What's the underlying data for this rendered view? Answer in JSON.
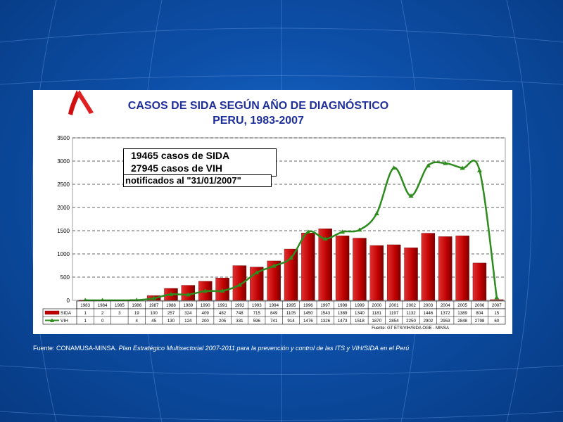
{
  "chart_data": {
    "type": "bar",
    "title_line1": "CASOS DE SIDA SEGÚN AÑO DE DIAGNÓSTICO",
    "title_line2": "PERU, 1983-2007",
    "categories": [
      "1983",
      "1984",
      "1985",
      "1986",
      "1987",
      "1988",
      "1989",
      "1990",
      "1991",
      "1992",
      "1993",
      "1994",
      "1995",
      "1996",
      "1997",
      "1998",
      "1999",
      "2000",
      "2001",
      "2002",
      "2003",
      "2004",
      "2005",
      "2006",
      "2007"
    ],
    "series": [
      {
        "name": "SIDA",
        "kind": "bar",
        "color": "#c00000",
        "values": [
          1,
          2,
          3,
          19,
          100,
          257,
          324,
          409,
          482,
          748,
          715,
          849,
          1105,
          1450,
          1543,
          1389,
          1340,
          1181,
          1197,
          1132,
          1446,
          1372,
          1389,
          804,
          15
        ]
      },
      {
        "name": "VIH",
        "kind": "line",
        "color": "#2e8b1e",
        "values": [
          1,
          0,
          null,
          4,
          45,
          130,
          124,
          200,
          205,
          331,
          596,
          741,
          914,
          1476,
          1326,
          1473,
          1518,
          1870,
          2854,
          2250,
          2902,
          2953,
          2848,
          2798,
          60
        ]
      }
    ],
    "ylim": [
      0,
      3500
    ],
    "yticks": [
      0,
      500,
      1000,
      1500,
      2000,
      2500,
      3000,
      3500
    ],
    "table_values": {
      "SIDA": [
        "1",
        "2",
        "3",
        "19",
        "100",
        "257",
        "324",
        "409",
        "482",
        "748",
        "715",
        "849",
        "1105",
        "1450",
        "1543",
        "1389",
        "1340",
        "1181",
        "1197",
        "1132",
        "1446",
        "1372",
        "1389",
        "804",
        "15"
      ],
      "VIH": [
        "1",
        "0",
        "",
        "4",
        "45",
        "130",
        "124",
        "200",
        "205",
        "331",
        "596",
        "741",
        "914",
        "1476",
        "1326",
        "1473",
        "1518",
        "1870",
        "2854",
        "2250",
        "2902",
        "2953",
        "2848",
        "2798",
        "60"
      ]
    },
    "annotation_lines": [
      "19465 casos de SIDA",
      "27945 casos de VIH",
      "notificados al \"31/01/2007\""
    ],
    "source_inner": "Fuente: GT ETS/VIH/SIDA OGE - MINSA",
    "grid": "dashed horizontal"
  },
  "footer": {
    "prefix": "Fuente: CONAMUSA-MINSA. ",
    "italic": "Plan Estratégico Multisectorial 2007-2011 para la prevención y control de las ITS y VIH/SIDA en el Perú"
  },
  "colors": {
    "background": "#0d4fa8",
    "title": "#1f2f9a",
    "ribbon": "#d01010"
  }
}
